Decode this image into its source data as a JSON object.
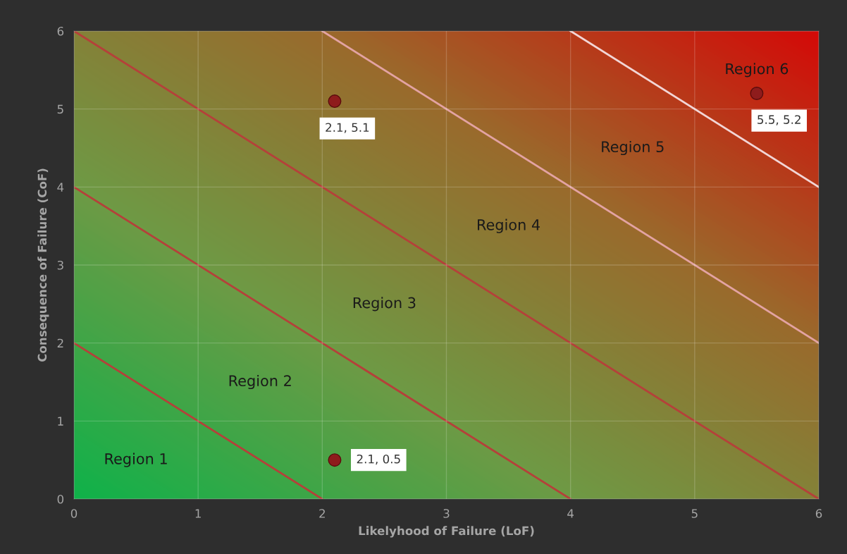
{
  "chart_data": {
    "type": "scatter",
    "xlabel": "Likelyhood of Failure (LoF)",
    "ylabel": "Consequence of Failure (CoF)",
    "xlim": [
      0,
      6
    ],
    "ylim": [
      0,
      6
    ],
    "xticks": [
      0,
      1,
      2,
      3,
      4,
      5,
      6
    ],
    "yticks": [
      0,
      1,
      2,
      3,
      4,
      5,
      6
    ],
    "grid": true,
    "legend": false,
    "series": [
      {
        "type": "line",
        "x": [
          0,
          2
        ],
        "values": [
          2,
          0
        ],
        "color": "#b5403a",
        "marker": "none",
        "line_style": "solid"
      },
      {
        "type": "line",
        "x": [
          0,
          4
        ],
        "values": [
          4,
          0
        ],
        "color": "#b5403a",
        "marker": "none",
        "line_style": "solid"
      },
      {
        "type": "line",
        "x": [
          0,
          6
        ],
        "values": [
          6,
          0
        ],
        "color": "#b5403a",
        "marker": "none",
        "line_style": "solid"
      },
      {
        "type": "line",
        "x": [
          2,
          6
        ],
        "values": [
          6,
          2
        ],
        "color": "#e3a3a3",
        "marker": "none",
        "line_style": "solid"
      },
      {
        "type": "line",
        "x": [
          4,
          6
        ],
        "values": [
          6,
          4
        ],
        "color": "#f2d6d6",
        "marker": "none",
        "line_style": "solid"
      },
      {
        "x": [
          2.1,
          2.1,
          5.5
        ],
        "values": [
          5.1,
          0.5,
          5.2
        ],
        "color": "#8e1c1c",
        "marker": "circle",
        "value_labels": [
          "2.1, 5.1",
          "2.1, 0.5",
          "5.5, 5.2"
        ]
      }
    ],
    "annotations": [
      "Region 1",
      "Region 2",
      "Region 3",
      "Region 4",
      "Region 5",
      "Region 6"
    ]
  }
}
